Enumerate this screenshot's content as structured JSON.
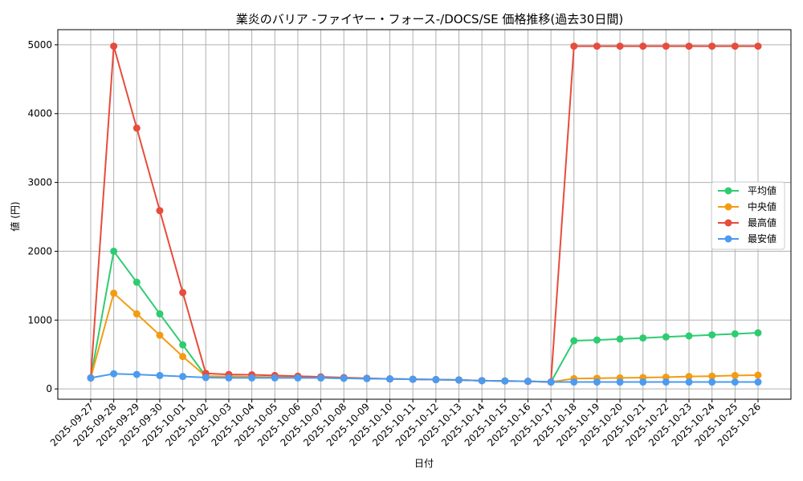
{
  "chart_data": {
    "type": "line",
    "title": "業炎のバリア -ファイヤー・フォース-/DOCS/SE 価格推移(過去30日間)",
    "xlabel": "日付",
    "ylabel": "値 (円)",
    "ylim": [
      -150,
      5220
    ],
    "yticks": [
      0,
      1000,
      2000,
      3000,
      4000,
      5000
    ],
    "grid": true,
    "legend_position": "right",
    "categories": [
      "2025-09-27",
      "2025-09-28",
      "2025-09-29",
      "2025-09-30",
      "2025-10-01",
      "2025-10-02",
      "2025-10-03",
      "2025-10-04",
      "2025-10-05",
      "2025-10-06",
      "2025-10-07",
      "2025-10-08",
      "2025-10-09",
      "2025-10-10",
      "2025-10-11",
      "2025-10-12",
      "2025-10-13",
      "2025-10-14",
      "2025-10-15",
      "2025-10-16",
      "2025-10-17",
      "2025-10-18",
      "2025-10-19",
      "2025-10-20",
      "2025-10-21",
      "2025-10-22",
      "2025-10-23",
      "2025-10-24",
      "2025-10-25",
      "2025-10-26"
    ],
    "series": [
      {
        "name": "平均値",
        "color": "#2ecc71",
        "values": [
          160,
          2000,
          1550,
          1090,
          640,
          185,
          180,
          175,
          170,
          165,
          160,
          155,
          150,
          145,
          140,
          135,
          130,
          120,
          115,
          110,
          100,
          700,
          710,
          725,
          740,
          755,
          770,
          785,
          800,
          815
        ]
      },
      {
        "name": "中央値",
        "color": "#f39c12",
        "values": [
          160,
          1390,
          1090,
          780,
          470,
          185,
          180,
          175,
          170,
          165,
          160,
          155,
          150,
          145,
          140,
          135,
          130,
          120,
          115,
          110,
          100,
          150,
          155,
          160,
          165,
          170,
          180,
          185,
          195,
          200
        ]
      },
      {
        "name": "最高値",
        "color": "#e74c3c",
        "values": [
          160,
          4980,
          3790,
          2590,
          1400,
          225,
          210,
          205,
          195,
          185,
          175,
          165,
          155,
          145,
          140,
          135,
          130,
          120,
          115,
          110,
          100,
          4980,
          4980,
          4980,
          4980,
          4980,
          4980,
          4980,
          4980,
          4980
        ]
      },
      {
        "name": "最安値",
        "color": "#4c9bf0",
        "values": [
          160,
          220,
          210,
          195,
          180,
          165,
          160,
          160,
          160,
          160,
          160,
          155,
          150,
          145,
          140,
          135,
          130,
          120,
          115,
          110,
          100,
          100,
          100,
          100,
          100,
          100,
          100,
          100,
          100,
          100
        ]
      }
    ]
  }
}
